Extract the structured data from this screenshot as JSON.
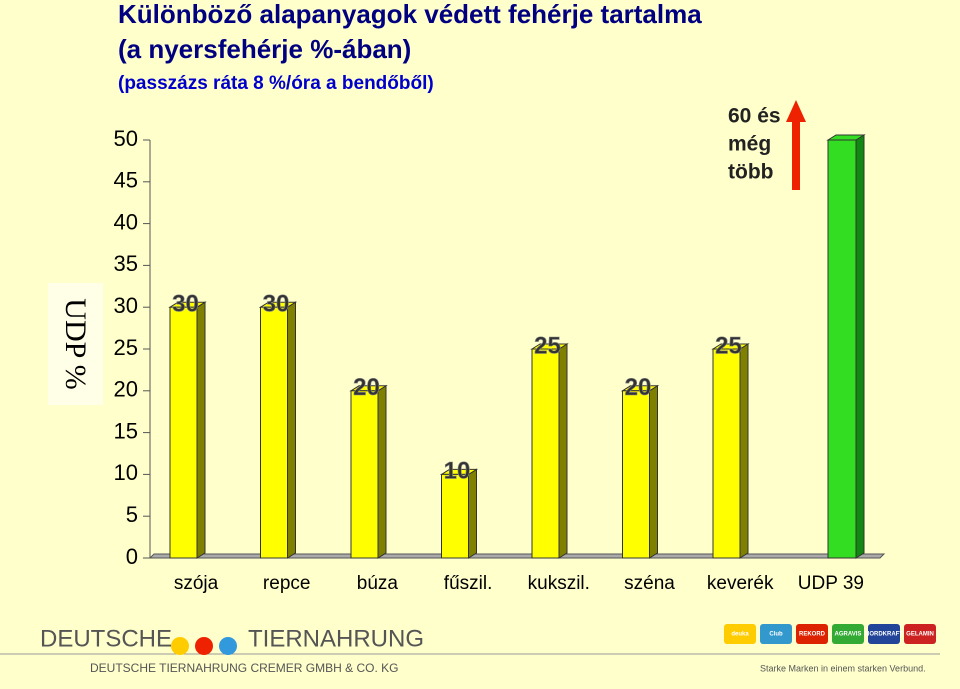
{
  "chart_data": {
    "type": "bar",
    "title": [
      "Különböző alapanyagok védett fehérje tartalma",
      "(a nyersfehérje %-ában)"
    ],
    "subtitle": "(passzázs ráta 8 %/óra a bendőből)",
    "y_label": "UDP %",
    "categories": [
      "szója",
      "repce",
      "búza",
      "fűszil.",
      "kukszil.",
      "széna",
      "keverék",
      "UDP 39"
    ],
    "values": [
      30,
      30,
      20,
      10,
      25,
      20,
      25,
      50
    ],
    "colors": [
      "#ffff00",
      "#ffff00",
      "#ffff00",
      "#ffff00",
      "#ffff00",
      "#ffff00",
      "#ffff00",
      "#33dd22"
    ],
    "annotation": [
      "60 és",
      "még",
      "több"
    ],
    "ylim": [
      0,
      50
    ],
    "yticks": [
      0,
      5,
      10,
      15,
      20,
      25,
      30,
      35,
      40,
      45,
      50
    ]
  },
  "footer": {
    "brand_left": "DEUTSCHE",
    "brand_right": "TIERNAHRUNG",
    "company": "DEUTSCHE TIERNAHRUNG CREMER GMBH & CO. KG",
    "slogan": "Starke Marken in einem starken Verbund.",
    "logos": [
      "deuka",
      "Club",
      "REKORD",
      "AGRAVIS",
      "NORDKRAFT",
      "GELAMIN"
    ]
  }
}
